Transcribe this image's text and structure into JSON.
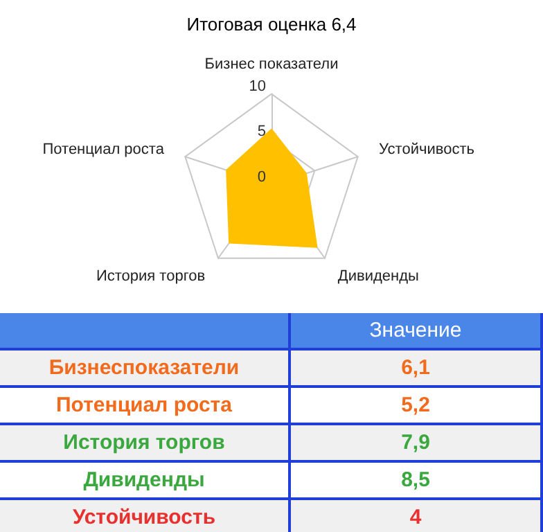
{
  "chart_data": {
    "type": "radar",
    "title": "Итоговая оценка 6,4",
    "categories": [
      "Бизнес показатели",
      "Устойчивость",
      "Дивиденды",
      "История торгов",
      "Потенциал роста"
    ],
    "series": [
      {
        "color": "#ffc000",
        "values": [
          6.1,
          4,
          8.5,
          7.9,
          5.2
        ]
      }
    ],
    "ylim": [
      0,
      10
    ],
    "yticks": [
      0,
      5,
      10
    ],
    "grid": true,
    "annotations": [
      "Значение",
      "Бизнеспоказатели",
      "6,1",
      "Потенциал роста",
      "5,2",
      "История торгов",
      "7,9",
      "Дивиденды",
      "8,5",
      "Устойчивость",
      "4"
    ]
  }
}
